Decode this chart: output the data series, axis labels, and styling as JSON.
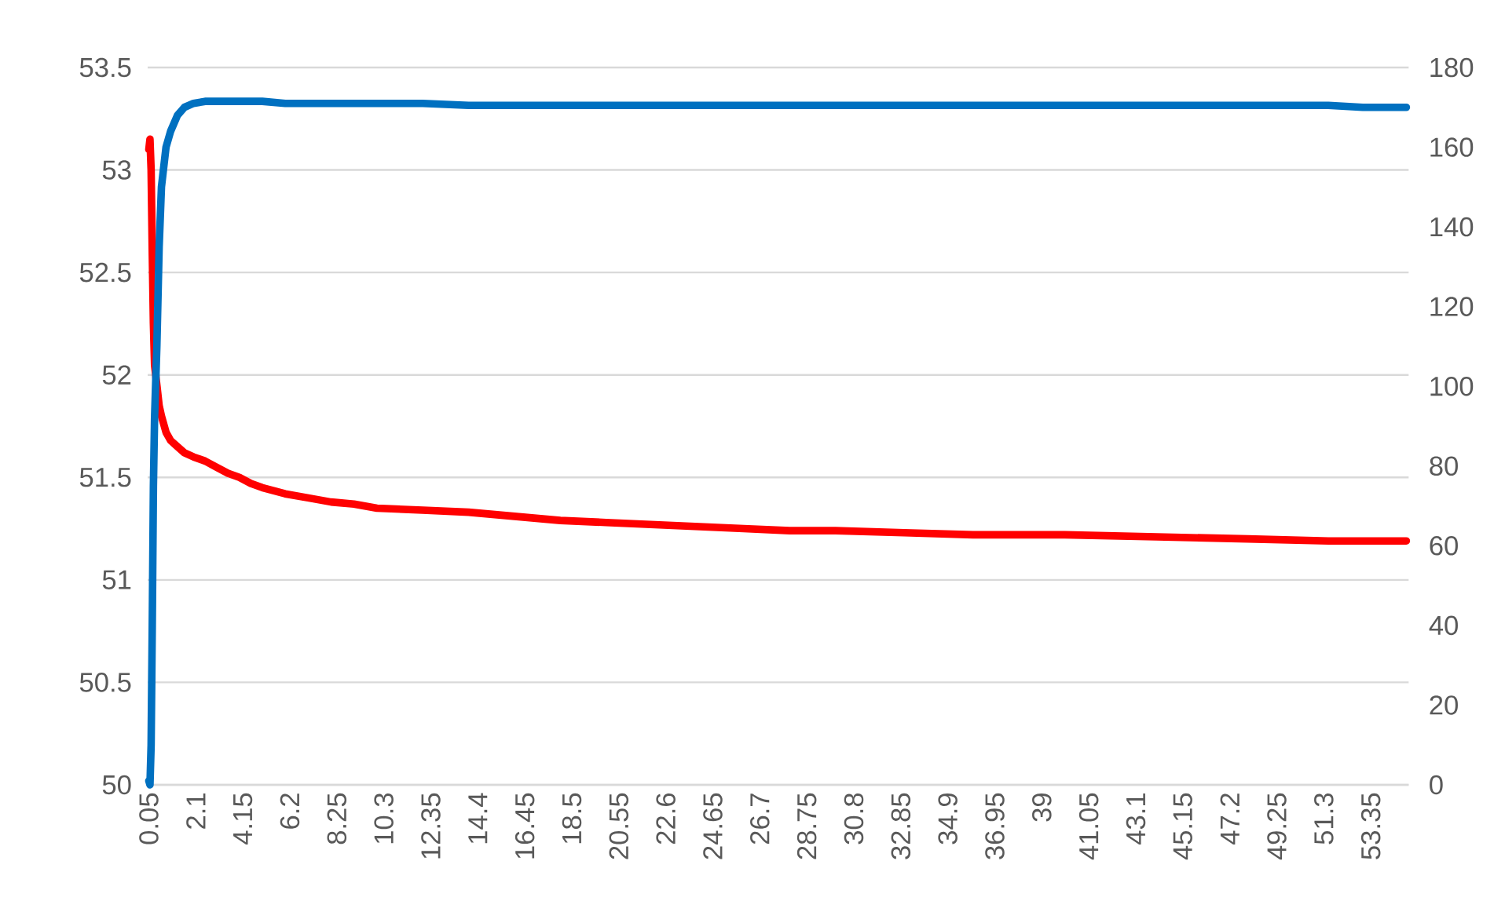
{
  "chart_data": {
    "type": "line",
    "x": [
      0.05,
      0.1,
      0.15,
      0.2,
      0.25,
      0.3,
      0.4,
      0.5,
      0.6,
      0.8,
      1.0,
      1.3,
      1.6,
      2.0,
      2.5,
      3.0,
      3.5,
      4.0,
      4.5,
      5.0,
      6.0,
      7.0,
      8.0,
      9.0,
      10.0,
      12.0,
      14.0,
      16.0,
      18.0,
      20.0,
      22.0,
      24.0,
      26.0,
      28.0,
      30.0,
      33.0,
      36.0,
      40.0,
      44.0,
      48.0,
      51.5,
      53.0,
      54.9
    ],
    "series": [
      {
        "color": "#ff0000",
        "axis": "y",
        "values": [
          53.1,
          53.15,
          53.0,
          52.6,
          52.25,
          52.05,
          51.95,
          51.85,
          51.8,
          51.72,
          51.68,
          51.65,
          51.62,
          51.6,
          51.58,
          51.55,
          51.52,
          51.5,
          51.47,
          51.45,
          51.42,
          51.4,
          51.38,
          51.37,
          51.35,
          51.34,
          51.33,
          51.31,
          51.29,
          51.28,
          51.27,
          51.26,
          51.25,
          51.24,
          51.24,
          51.23,
          51.22,
          51.22,
          51.21,
          51.2,
          51.19,
          51.19,
          51.19
        ]
      },
      {
        "color": "#0070c0",
        "axis": "y2",
        "values": [
          1,
          0,
          10,
          40,
          75,
          92,
          110,
          135,
          150,
          160,
          164,
          168,
          170,
          171,
          171.5,
          171.5,
          171.5,
          171.5,
          171.5,
          171.5,
          171,
          171,
          171,
          171,
          171,
          171,
          170.5,
          170.5,
          170.5,
          170.5,
          170.5,
          170.5,
          170.5,
          170.5,
          170.5,
          170.5,
          170.5,
          170.5,
          170.5,
          170.5,
          170.5,
          170,
          170
        ]
      }
    ],
    "xlim": [
      0,
      55
    ],
    "xticks": [
      0.05,
      2.1,
      4.15,
      6.2,
      8.25,
      10.3,
      12.35,
      14.4,
      16.45,
      18.5,
      20.55,
      22.6,
      24.65,
      26.7,
      28.75,
      30.8,
      32.85,
      34.9,
      36.95,
      39,
      41.05,
      43.1,
      45.15,
      47.2,
      49.25,
      51.3,
      53.35
    ],
    "ylim": [
      50,
      53.5
    ],
    "yticks": [
      50,
      50.5,
      51,
      51.5,
      52,
      52.5,
      53,
      53.5
    ],
    "y2lim": [
      0,
      180
    ],
    "y2ticks": [
      0,
      20,
      40,
      60,
      80,
      100,
      120,
      140,
      160,
      180
    ],
    "grid": "y",
    "marker": "none",
    "line_style": "solid",
    "legend": false
  }
}
